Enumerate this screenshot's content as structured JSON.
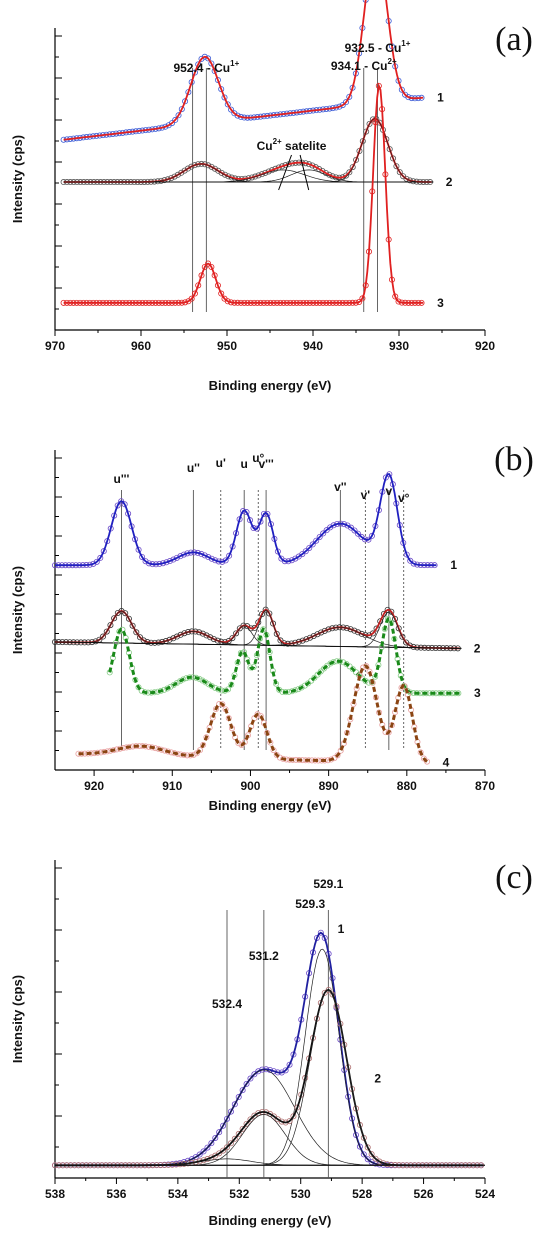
{
  "chart_data": [
    {
      "panel": "(a)",
      "type": "line",
      "xlabel": "Binding energy (eV)",
      "ylabel": "Intensity (cps)",
      "xlim": [
        970,
        920
      ],
      "x_ticks": [
        "970",
        "960",
        "950",
        "940",
        "930",
        "920"
      ],
      "reference_lines": [
        954.0,
        952.4,
        934.1,
        932.5
      ],
      "annotations": [
        {
          "text": "952.4 - Cu",
          "sup": "1+",
          "x": 952.4
        },
        {
          "text": "934.1 - Cu",
          "sup": "2+",
          "x": 934.1
        },
        {
          "text": "932.5 - Cu",
          "sup": "1+",
          "x": 932.5
        },
        {
          "text": "Cu",
          "sup": "2+",
          "text2": " satelite",
          "x": 942.5
        }
      ],
      "curve_labels": [
        "1",
        "2",
        "3"
      ],
      "series": [
        {
          "label": "1",
          "baseline": 0.63,
          "peaks": [
            [
              952.6,
              0.22,
              1.6
            ],
            [
              932.7,
              0.52,
              1.3
            ]
          ],
          "color_points": "#3b5bd6",
          "color_fit": "#e02020",
          "start": 969,
          "end": 927,
          "tail": 0.14
        },
        {
          "label": "2",
          "baseline": 0.49,
          "peaks": [
            [
              953.0,
              0.06,
              2.0
            ],
            [
              943.5,
              0.04,
              2.5
            ],
            [
              940.5,
              0.04,
              2.0
            ],
            [
              932.8,
              0.21,
              1.5
            ]
          ],
          "color_points": "#555555",
          "color_fit": "#e02020",
          "start": 969,
          "end": 926,
          "tail": 0.0
        },
        {
          "label": "3",
          "baseline": 0.09,
          "peaks": [
            [
              952.2,
              0.13,
              0.9
            ],
            [
              932.3,
              0.72,
              0.7
            ]
          ],
          "color_points": "#e02020",
          "color_fit": "#e02020",
          "start": 969,
          "end": 927,
          "tail": 0.0
        }
      ]
    },
    {
      "panel": "(b)",
      "type": "line",
      "xlabel": "Binding energy (eV)",
      "ylabel": "Intensity (cps)",
      "xlim": [
        925,
        870
      ],
      "x_ticks": [
        "920",
        "910",
        "900",
        "890",
        "880",
        "870"
      ],
      "peak_labels": [
        {
          "text": "u'''",
          "x": 916.5
        },
        {
          "text": "u''",
          "x": 907.3
        },
        {
          "text": "u'",
          "x": 903.8
        },
        {
          "text": "u",
          "x": 900.8
        },
        {
          "text": "u°",
          "x": 899.0
        },
        {
          "text": "v'''",
          "x": 898.0
        },
        {
          "text": "v''",
          "x": 888.5
        },
        {
          "text": "v'",
          "x": 885.3
        },
        {
          "text": "v",
          "x": 882.3
        },
        {
          "text": "v°",
          "x": 880.4
        }
      ],
      "curve_labels": [
        "1",
        "2",
        "3",
        "4"
      ],
      "series": [
        {
          "label": "1",
          "baseline": 0.64,
          "peaks": [
            [
              916.5,
              0.2,
              1.3
            ],
            [
              907.3,
              0.04,
              2.0
            ],
            [
              900.8,
              0.17,
              1.0
            ],
            [
              898.0,
              0.16,
              0.9
            ],
            [
              888.5,
              0.13,
              3.0
            ],
            [
              882.3,
              0.27,
              1.1
            ]
          ],
          "color_points": "#6a4ac8",
          "color_fit": "#2020c0",
          "start": 925,
          "end": 876,
          "tail": 0.0
        },
        {
          "label": "2",
          "baseline": 0.4,
          "peaks": [
            [
              916.5,
              0.1,
              1.3
            ],
            [
              907.3,
              0.04,
              2.0
            ],
            [
              900.8,
              0.06,
              1.0
            ],
            [
              898.0,
              0.11,
              0.9
            ],
            [
              888.5,
              0.06,
              3.0
            ],
            [
              882.3,
              0.11,
              1.1
            ]
          ],
          "color_points": "#333333",
          "color_fit": "#c02020",
          "start": 925,
          "end": 873,
          "tail": -0.02
        },
        {
          "label": "3",
          "baseline": 0.24,
          "peaks": [
            [
              916.5,
              0.2,
              1.0
            ],
            [
              907.5,
              0.05,
              2.0
            ],
            [
              901.0,
              0.13,
              0.8
            ],
            [
              898.3,
              0.2,
              0.8
            ],
            [
              888.8,
              0.1,
              2.5
            ],
            [
              882.3,
              0.23,
              0.9
            ]
          ],
          "color_points": "#88cc88",
          "color_fit": "#1a8a1a",
          "start": 918,
          "end": 873,
          "tail": 0.0
        },
        {
          "label": "4",
          "baseline": 0.05,
          "peaks": [
            [
              914.0,
              0.03,
              3.0
            ],
            [
              903.8,
              0.17,
              1.3
            ],
            [
              899.0,
              0.14,
              1.1
            ],
            [
              885.3,
              0.3,
              1.5
            ],
            [
              880.4,
              0.24,
              1.1
            ]
          ],
          "color_points": "#e8a0a0",
          "color_fit": "#8b4513",
          "start": 922,
          "end": 877,
          "tail": -0.03
        }
      ]
    },
    {
      "panel": "(c)",
      "type": "line",
      "xlabel": "Binding energy (eV)",
      "ylabel": "Intensity (cps)",
      "xlim": [
        538,
        524
      ],
      "x_ticks": [
        "538",
        "536",
        "534",
        "532",
        "530",
        "528",
        "526",
        "524"
      ],
      "reference_lines": [
        532.4,
        531.2,
        529.1
      ],
      "annotations": [
        {
          "text": "532.4",
          "x": 532.4
        },
        {
          "text": "531.2",
          "x": 531.2
        },
        {
          "text": "529.3",
          "x": 529.3
        },
        {
          "text": "529.1",
          "x": 529.1
        }
      ],
      "curve_labels": [
        "1",
        "2"
      ],
      "series": [
        {
          "label": "1",
          "baseline": 0.04,
          "peaks": [
            [
              529.3,
              0.68,
              0.55
            ],
            [
              531.2,
              0.3,
              1.0
            ]
          ],
          "color_points": "#6a4ac8",
          "color_fit": "#2020a0",
          "start": 538,
          "end": 524,
          "tail": 0.0
        },
        {
          "label": "2",
          "baseline": 0.04,
          "peaks": [
            [
              529.1,
              0.55,
              0.6
            ],
            [
              531.2,
              0.16,
              0.7
            ],
            [
              532.4,
              0.02,
              0.8
            ]
          ],
          "color_points": "#b07070",
          "color_fit": "#111111",
          "start": 538,
          "end": 524,
          "tail": 0.0
        }
      ]
    }
  ],
  "panels": {
    "a": {
      "label": "(a)"
    },
    "b": {
      "label": "(b)"
    },
    "c": {
      "label": "(c)"
    }
  }
}
